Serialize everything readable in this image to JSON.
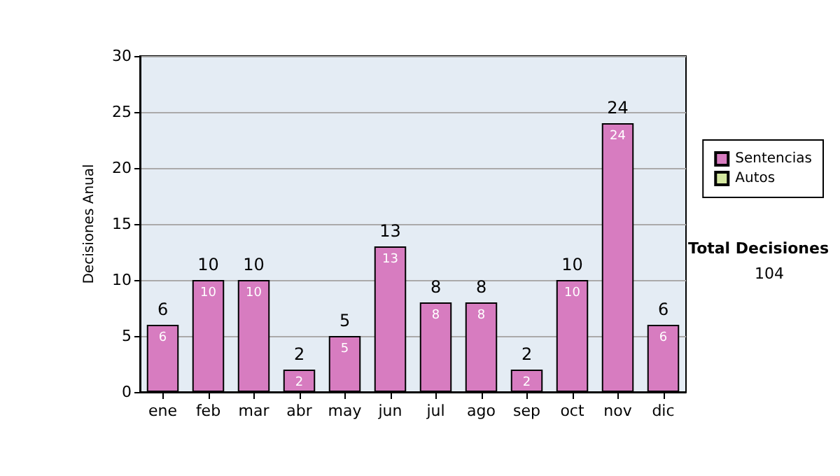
{
  "chart_data": {
    "type": "bar",
    "ylabel": "Decisiones Anual",
    "categories": [
      "ene",
      "feb",
      "mar",
      "abr",
      "may",
      "jun",
      "jul",
      "ago",
      "sep",
      "oct",
      "nov",
      "dic"
    ],
    "series": [
      {
        "name": "Sentencias",
        "color": "#d77cc0",
        "values": [
          6,
          10,
          10,
          2,
          5,
          13,
          8,
          8,
          2,
          10,
          24,
          6
        ],
        "value_labels": [
          "6",
          "10",
          "10",
          "2",
          "5",
          "13",
          "8",
          "8",
          "2",
          "10",
          "24",
          "6"
        ]
      },
      {
        "name": "Autos",
        "color": "#d4e8a0",
        "values": [
          0,
          0,
          0,
          0,
          0,
          0,
          0,
          0,
          0,
          0,
          0,
          0
        ]
      }
    ],
    "stacked": true,
    "totals": [
      "6",
      "10",
      "10",
      "2",
      "5",
      "13",
      "8",
      "8",
      "2",
      "10",
      "24",
      "6"
    ],
    "ylim": [
      0,
      30
    ],
    "yticks": [
      0,
      5,
      10,
      15,
      20,
      25,
      30
    ],
    "grid": "y",
    "legend": "right",
    "annotations": [
      "Total Decisiones",
      "104"
    ]
  }
}
